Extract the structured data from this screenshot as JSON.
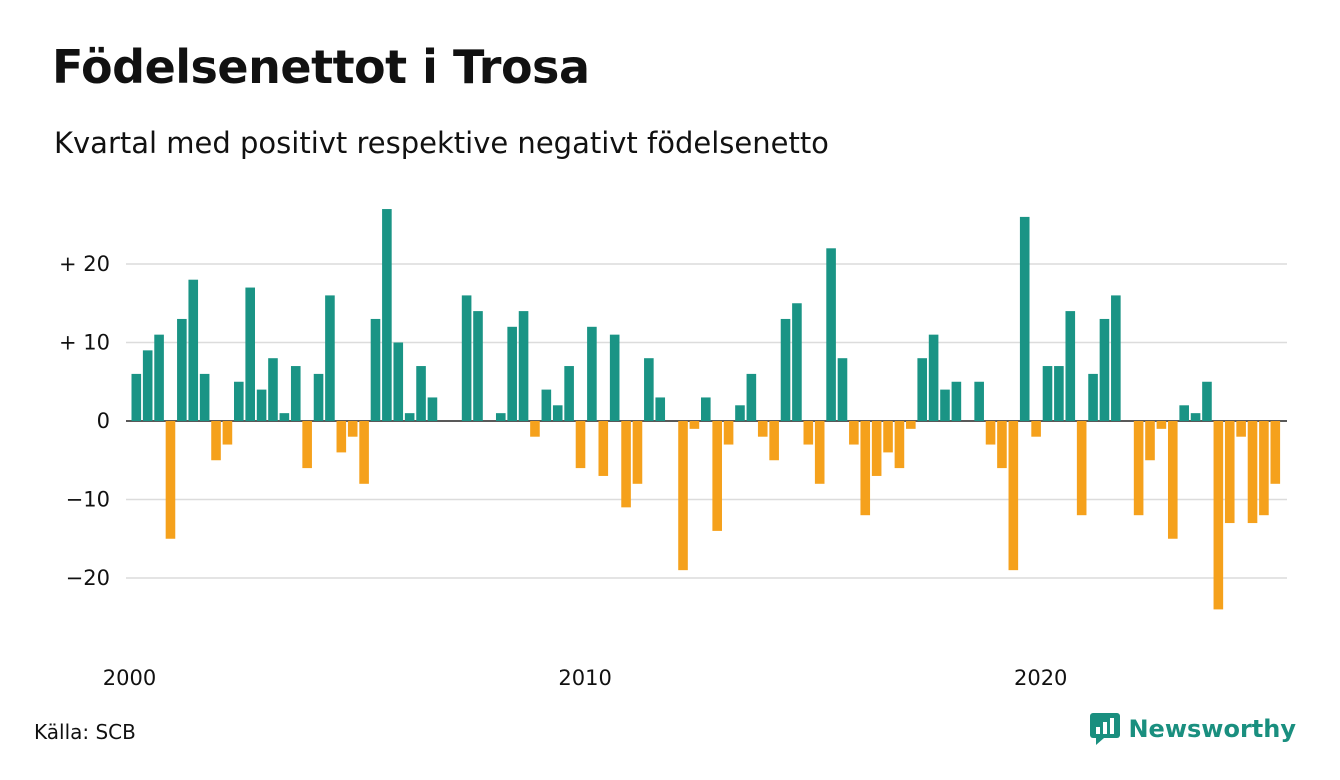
{
  "header": {
    "title": "Födelsenettot i Trosa",
    "subtitle": "Kvartal med positivt respektive negativt födelsenetto"
  },
  "footer": {
    "source": "Källa: SCB",
    "brand": "Newsworthy",
    "brand_icon": "newsworthy-logo-icon"
  },
  "colors": {
    "positive": "#1a9485",
    "negative": "#f5a11c",
    "grid": "#dcdcdc",
    "brand": "#1a8f7f"
  },
  "chart_data": {
    "type": "bar",
    "x_start": "2000 Q1",
    "x_step": "quarter",
    "y_ticks": [
      20,
      10,
      0,
      -10,
      -20
    ],
    "y_tick_labels": [
      "+ 20",
      "+ 10",
      "0",
      "−10",
      "−20"
    ],
    "x_tick_labels": [
      {
        "label": "2000",
        "year": 2000
      },
      {
        "label": "2010",
        "year": 2010
      },
      {
        "label": "2020",
        "year": 2020
      }
    ],
    "ylim": [
      -27,
      28
    ],
    "grid": true,
    "values": [
      6,
      9,
      11,
      -15,
      13,
      18,
      6,
      -5,
      -3,
      5,
      17,
      4,
      8,
      1,
      7,
      -6,
      6,
      16,
      -4,
      -2,
      -8,
      13,
      27,
      10,
      1,
      7,
      3,
      0,
      0,
      16,
      14,
      0,
      1,
      12,
      14,
      -2,
      4,
      2,
      7,
      -6,
      12,
      -7,
      11,
      -11,
      -8,
      8,
      3,
      0,
      -19,
      -1,
      3,
      -14,
      -3,
      2,
      6,
      -2,
      -5,
      13,
      15,
      -3,
      -8,
      22,
      8,
      -3,
      -12,
      -7,
      -4,
      -6,
      -1,
      8,
      11,
      4,
      5,
      0,
      5,
      -3,
      -6,
      -19,
      26,
      -2,
      7,
      7,
      14,
      -12,
      6,
      13,
      16,
      0,
      -12,
      -5,
      -1,
      -15,
      2,
      1,
      5,
      -24,
      -13,
      -2,
      -13,
      -12,
      -8
    ]
  }
}
